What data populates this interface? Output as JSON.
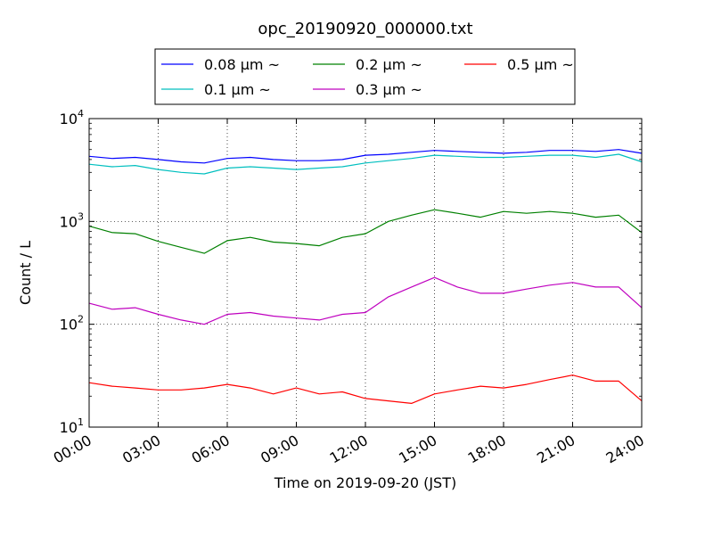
{
  "chart_data": {
    "type": "line",
    "title": "opc_20190920_000000.txt",
    "xlabel": "Time on 2019-09-20 (JST)",
    "ylabel": "Count / L",
    "yscale": "log",
    "ylim": [
      10,
      10000
    ],
    "xlim_hours": [
      0,
      24
    ],
    "x_ticks": [
      "00:00",
      "03:00",
      "06:00",
      "09:00",
      "12:00",
      "15:00",
      "18:00",
      "21:00",
      "24:00"
    ],
    "y_ticks": [
      {
        "base": "10",
        "exp": "1"
      },
      {
        "base": "10",
        "exp": "2"
      },
      {
        "base": "10",
        "exp": "3"
      },
      {
        "base": "10",
        "exp": "4"
      }
    ],
    "grid": true,
    "legend_position": "top-center",
    "x": [
      "00:00",
      "01:00",
      "02:00",
      "03:00",
      "04:00",
      "05:00",
      "06:00",
      "07:00",
      "08:00",
      "09:00",
      "10:00",
      "11:00",
      "12:00",
      "13:00",
      "14:00",
      "15:00",
      "16:00",
      "17:00",
      "18:00",
      "19:00",
      "20:00",
      "21:00",
      "22:00",
      "23:00",
      "24:00"
    ],
    "series": [
      {
        "name": "0.08 μm ~",
        "color": "#0000ff",
        "values": [
          4300,
          4100,
          4200,
          4000,
          3800,
          3700,
          4100,
          4200,
          4000,
          3900,
          3900,
          4000,
          4400,
          4500,
          4700,
          4900,
          4800,
          4700,
          4600,
          4700,
          4900,
          4900,
          4800,
          5000,
          4600
        ]
      },
      {
        "name": "0.1 μm ~",
        "color": "#00bfbf",
        "values": [
          3600,
          3400,
          3500,
          3200,
          3000,
          2900,
          3300,
          3400,
          3300,
          3200,
          3300,
          3400,
          3700,
          3900,
          4100,
          4400,
          4300,
          4200,
          4200,
          4300,
          4400,
          4400,
          4200,
          4500,
          3800
        ]
      },
      {
        "name": "0.2 μm ~",
        "color": "#008000",
        "values": [
          900,
          780,
          760,
          640,
          560,
          490,
          650,
          700,
          630,
          610,
          580,
          700,
          760,
          1000,
          1150,
          1300,
          1200,
          1100,
          1250,
          1200,
          1250,
          1200,
          1100,
          1150,
          780
        ]
      },
      {
        "name": "0.3 μm ~",
        "color": "#bf00bf",
        "values": [
          160,
          140,
          145,
          125,
          110,
          100,
          125,
          130,
          120,
          115,
          110,
          125,
          130,
          185,
          230,
          285,
          230,
          200,
          200,
          220,
          240,
          255,
          230,
          230,
          145
        ]
      },
      {
        "name": "0.5 μm ~",
        "color": "#ff0000",
        "values": [
          27,
          25,
          24,
          23,
          23,
          24,
          26,
          24,
          21,
          24,
          21,
          22,
          19,
          18,
          17,
          21,
          23,
          25,
          24,
          26,
          29,
          32,
          28,
          28,
          18
        ]
      }
    ]
  }
}
